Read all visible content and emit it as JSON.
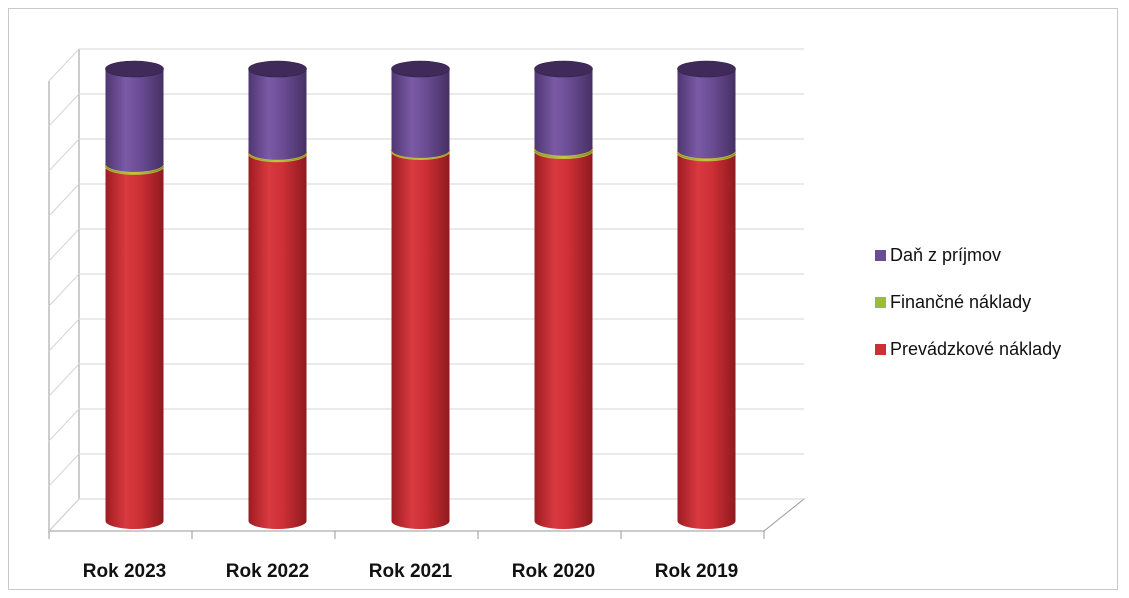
{
  "chart_data": {
    "type": "bar",
    "stacked": true,
    "stacked_percent": true,
    "three_d": true,
    "bar_shape": "cylinder",
    "grid": true,
    "legend_position": "right",
    "categories": [
      "Rok 2023",
      "Rok 2022",
      "Rok 2021",
      "Rok 2020",
      "Rok 2019"
    ],
    "series": [
      {
        "name": "Prevádzkové náklady",
        "color": "#cc2f35",
        "values": [
          78.5,
          81.3,
          81.8,
          82.0,
          81.5
        ]
      },
      {
        "name": "Finančné náklady",
        "color": "#9bbb3a",
        "values": [
          0.5,
          0.4,
          0.3,
          0.6,
          0.5
        ]
      },
      {
        "name": "Daň z príjmov",
        "color": "#6a4c94",
        "values": [
          21.0,
          18.3,
          17.9,
          17.4,
          18.0
        ]
      }
    ],
    "ylim": [
      0,
      100
    ],
    "legend": [
      "Daň z príjmov",
      "Finančné náklady",
      "Prevádzkové náklady"
    ]
  }
}
